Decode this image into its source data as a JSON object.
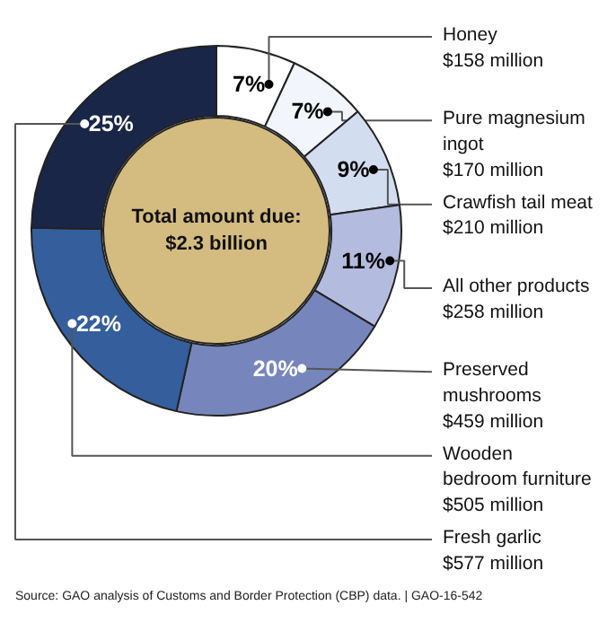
{
  "chart_data": {
    "type": "donut",
    "categories": [
      "Honey\n$158 million",
      "Pure magnesium\ningot\n$170 million",
      "Crawfish tail meat\n$210 million",
      "All other products\n$258 million",
      "Preserved\nmushrooms\n$459 million",
      "Wooden\nbedroom furniture\n$505 million",
      "Fresh garlic\n$577 million"
    ],
    "values": [
      7,
      7,
      9,
      11,
      20,
      22,
      25
    ],
    "value_labels": [
      "7%",
      "7%",
      "9%",
      "11%",
      "20%",
      "22%",
      "25%"
    ],
    "colors": [
      "#ffffff",
      "#f2f5fb",
      "#d3ddf0",
      "#b3bbdf",
      "#7686bd",
      "#355f9c",
      "#1a2648"
    ],
    "annotations": [
      "Total amount due:\n$2.3 billion",
      "Source: GAO analysis of Customs and Border Protection (CBP) data.  |  GAO-16-542"
    ]
  }
}
